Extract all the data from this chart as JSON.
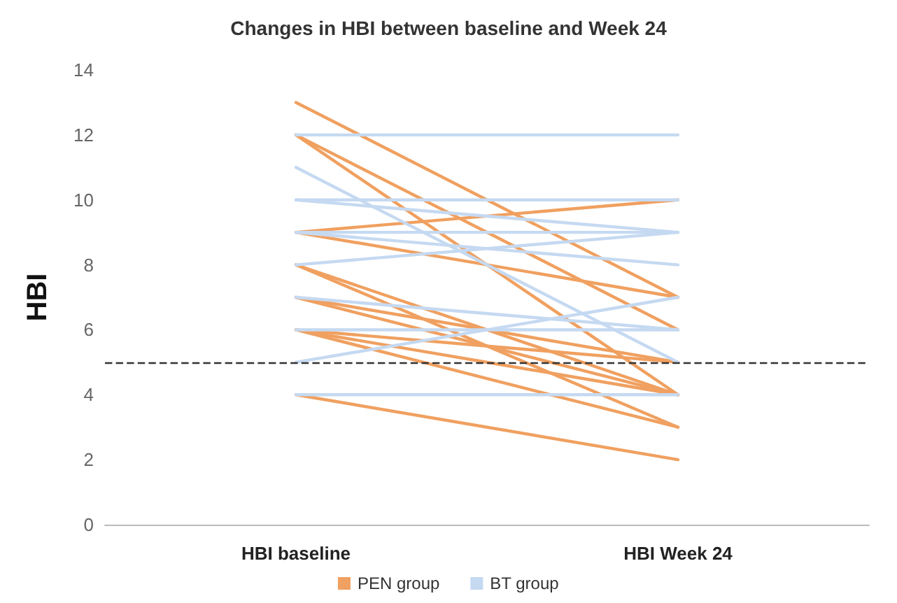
{
  "chart_data": {
    "type": "line",
    "title": "Changes in HBI between baseline and Week 24",
    "ylabel": "HBI",
    "categories": [
      "HBI baseline",
      "HBI Week 24"
    ],
    "ylim": [
      0,
      14
    ],
    "yticks": [
      0,
      2,
      4,
      6,
      8,
      10,
      12,
      14
    ],
    "grid": false,
    "marker": "none",
    "line_style": "solid",
    "legend": "bottom",
    "ref_lines": [
      {
        "axis": "y",
        "value": 5,
        "label": null,
        "color": "#333333",
        "line_style": "dashed"
      }
    ],
    "series": [
      {
        "name": "PEN group",
        "color": "#f0a060",
        "values": [
          13,
          7
        ]
      },
      {
        "color": "#f0a060",
        "values": [
          12,
          6
        ]
      },
      {
        "color": "#f0a060",
        "values": [
          12,
          4
        ]
      },
      {
        "color": "#f0a060",
        "values": [
          9,
          10
        ]
      },
      {
        "color": "#f0a060",
        "values": [
          9,
          7
        ]
      },
      {
        "color": "#f0a060",
        "values": [
          8,
          4
        ]
      },
      {
        "color": "#f0a060",
        "values": [
          8,
          3
        ]
      },
      {
        "color": "#f0a060",
        "values": [
          7,
          4
        ]
      },
      {
        "color": "#f0a060",
        "values": [
          7,
          5
        ]
      },
      {
        "color": "#f0a060",
        "values": [
          6,
          5
        ]
      },
      {
        "color": "#f0a060",
        "values": [
          6,
          4
        ]
      },
      {
        "color": "#f0a060",
        "values": [
          6,
          3
        ]
      },
      {
        "color": "#f0a060",
        "values": [
          4,
          2
        ]
      },
      {
        "name": "BT group",
        "color": "#c5d9f1",
        "values": [
          12,
          12
        ]
      },
      {
        "color": "#c5d9f1",
        "values": [
          11,
          5
        ]
      },
      {
        "color": "#c5d9f1",
        "values": [
          10,
          10
        ]
      },
      {
        "color": "#c5d9f1",
        "values": [
          10,
          9
        ]
      },
      {
        "color": "#c5d9f1",
        "values": [
          9,
          9
        ]
      },
      {
        "color": "#c5d9f1",
        "values": [
          9,
          8
        ]
      },
      {
        "color": "#c5d9f1",
        "values": [
          8,
          9
        ]
      },
      {
        "color": "#c5d9f1",
        "values": [
          7,
          6
        ]
      },
      {
        "color": "#c5d9f1",
        "values": [
          6,
          6
        ]
      },
      {
        "color": "#c5d9f1",
        "values": [
          5,
          7
        ]
      },
      {
        "color": "#c5d9f1",
        "values": [
          4,
          4
        ]
      }
    ]
  }
}
